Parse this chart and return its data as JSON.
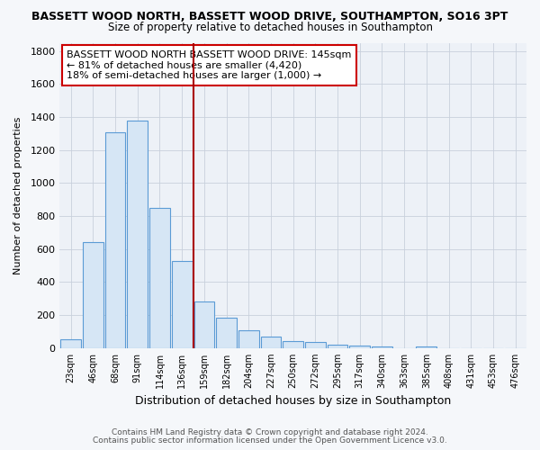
{
  "title1": "BASSETT WOOD NORTH, BASSETT WOOD DRIVE, SOUTHAMPTON, SO16 3PT",
  "title2": "Size of property relative to detached houses in Southampton",
  "xlabel": "Distribution of detached houses by size in Southampton",
  "ylabel": "Number of detached properties",
  "bar_labels": [
    "23sqm",
    "46sqm",
    "68sqm",
    "91sqm",
    "114sqm",
    "136sqm",
    "159sqm",
    "182sqm",
    "204sqm",
    "227sqm",
    "250sqm",
    "272sqm",
    "295sqm",
    "317sqm",
    "340sqm",
    "363sqm",
    "385sqm",
    "408sqm",
    "431sqm",
    "453sqm",
    "476sqm"
  ],
  "bar_values": [
    55,
    640,
    1310,
    1380,
    850,
    530,
    280,
    185,
    110,
    70,
    40,
    35,
    20,
    15,
    8,
    0,
    10,
    0,
    0,
    0,
    0
  ],
  "bar_color": "#d6e6f5",
  "bar_edge_color": "#5b9bd5",
  "vline_x": 5.5,
  "vline_color": "#aa0000",
  "annotation_title": "BASSETT WOOD NORTH BASSETT WOOD DRIVE: 145sqm",
  "annotation_line1": "← 81% of detached houses are smaller (4,420)",
  "annotation_line2": "18% of semi-detached houses are larger (1,000) →",
  "annotation_box_color": "#ffffff",
  "annotation_box_edge": "#cc0000",
  "ylim": [
    0,
    1850
  ],
  "yticks": [
    0,
    200,
    400,
    600,
    800,
    1000,
    1200,
    1400,
    1600,
    1800
  ],
  "fig_bg_color": "#f5f7fa",
  "ax_bg_color": "#edf1f7",
  "grid_color": "#c8d0dc",
  "title1_fontsize": 9,
  "title2_fontsize": 8.5,
  "ylabel_fontsize": 8,
  "xlabel_fontsize": 9,
  "footer1": "Contains HM Land Registry data © Crown copyright and database right 2024.",
  "footer2": "Contains public sector information licensed under the Open Government Licence v3.0."
}
